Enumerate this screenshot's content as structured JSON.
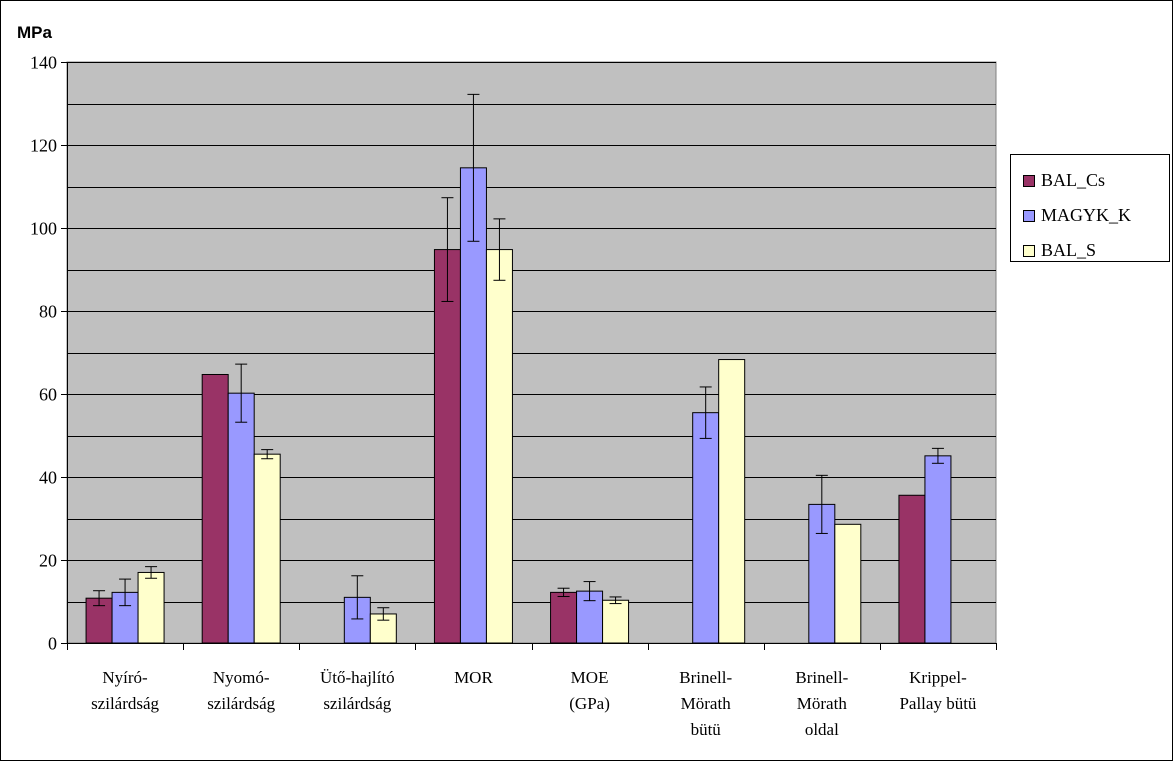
{
  "chart_data": {
    "type": "bar",
    "title": "",
    "ylabel": "MPa",
    "xlabel": "",
    "ylim": [
      0,
      140
    ],
    "y_ticks": [
      "0",
      "20",
      "40",
      "60",
      "80",
      "100",
      "120",
      "140"
    ],
    "y_tick_values": [
      0,
      20,
      40,
      60,
      80,
      100,
      120,
      140
    ],
    "grid_step": 10,
    "grid": true,
    "legend_position": "right",
    "categories": [
      [
        "Nyíró-",
        "szilárdság"
      ],
      [
        "Nyomó-",
        "szilárdság"
      ],
      [
        "Ütő-hajlító",
        "szilárdság"
      ],
      [
        "MOR"
      ],
      [
        "MOE",
        "(GPa)"
      ],
      [
        "Brinell-",
        "Mörath",
        "bütü"
      ],
      [
        "Brinell-",
        "Mörath",
        "oldal"
      ],
      [
        "Krippel-",
        "Pallay bütü"
      ]
    ],
    "series": [
      {
        "name": "BAL_Cs",
        "color": "#993366",
        "values": [
          10.8,
          64.7,
          null,
          94.8,
          12.2,
          null,
          null,
          35.6
        ],
        "errors": [
          1.8,
          null,
          null,
          12.5,
          1.0,
          null,
          null,
          null
        ]
      },
      {
        "name": "MAGYK_K",
        "color": "#9999ff",
        "values": [
          12.2,
          60.2,
          11.0,
          114.5,
          12.5,
          55.5,
          33.4,
          45.1
        ],
        "errors": [
          3.2,
          7.0,
          5.2,
          17.7,
          2.3,
          6.2,
          7.0,
          1.8
        ]
      },
      {
        "name": "BAL_S",
        "color": "#ffffcc",
        "values": [
          17.0,
          45.5,
          7.0,
          94.8,
          10.3,
          68.3,
          28.6,
          null
        ],
        "errors": [
          1.4,
          1.1,
          1.5,
          7.4,
          0.8,
          null,
          null,
          null
        ]
      }
    ],
    "plot_background": "#c0c0c0"
  }
}
